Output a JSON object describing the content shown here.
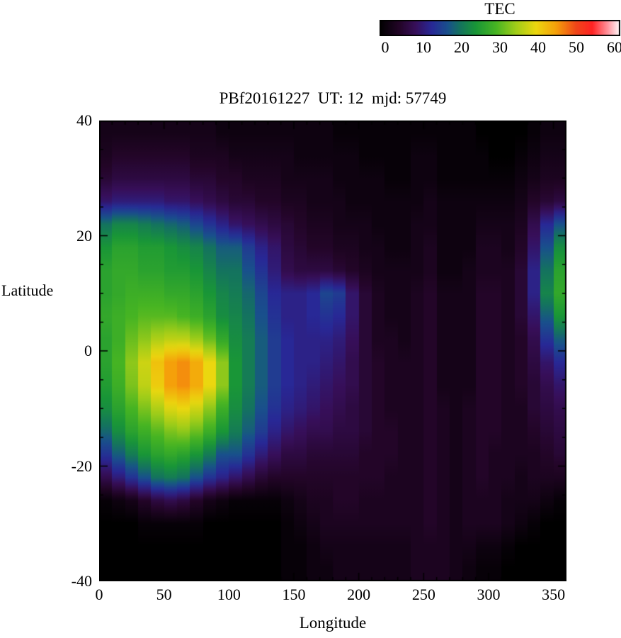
{
  "page": {
    "background": "#ffffff",
    "text_color": "#000000"
  },
  "chart_data": {
    "type": "heatmap",
    "title": "PBf20161227  UT: 12  mjd: 57749",
    "xlabel": "Longitude",
    "ylabel": "Latitude",
    "colorbar_title": "TEC",
    "xlim": [
      0,
      360
    ],
    "ylim": [
      -40,
      40
    ],
    "x_ticks": [
      0,
      50,
      100,
      150,
      200,
      250,
      300,
      350
    ],
    "y_ticks": [
      -40,
      -20,
      0,
      20,
      40
    ],
    "value_range": [
      0,
      60
    ],
    "colorbar_ticks": [
      0,
      10,
      20,
      30,
      40,
      50,
      60
    ],
    "grid_info": {
      "rows": 20,
      "cols": 36,
      "lat_centers": "from +38 (top row) to -38 (bottom row), step 4 deg",
      "lon_centers": "from 5 to 355, step 10 deg",
      "units": "TEC units, estimated from colorbar"
    },
    "colormap_stops": [
      {
        "v": 0,
        "c": "#000000"
      },
      {
        "v": 5,
        "c": "#230528"
      },
      {
        "v": 9,
        "c": "#370f5a"
      },
      {
        "v": 13,
        "c": "#282896"
      },
      {
        "v": 17,
        "c": "#19508c"
      },
      {
        "v": 20,
        "c": "#14735f"
      },
      {
        "v": 24,
        "c": "#199637"
      },
      {
        "v": 29,
        "c": "#46b423"
      },
      {
        "v": 34,
        "c": "#a0cd19"
      },
      {
        "v": 39,
        "c": "#ebd70f"
      },
      {
        "v": 44,
        "c": "#f5a00a"
      },
      {
        "v": 49,
        "c": "#f04619"
      },
      {
        "v": 53,
        "c": "#ff2323"
      },
      {
        "v": 57,
        "c": "#ff96a0"
      },
      {
        "v": 60,
        "c": "#ffffff"
      }
    ],
    "values": [
      [
        3,
        3,
        3,
        3,
        3,
        3,
        3,
        3,
        3,
        2,
        2,
        2,
        2,
        2,
        2,
        2,
        2,
        2,
        1,
        1,
        1,
        1,
        1,
        1,
        1,
        1,
        1,
        1,
        1,
        0,
        0,
        0,
        0,
        1,
        2,
        2
      ],
      [
        4,
        5,
        5,
        5,
        5,
        5,
        5,
        4,
        4,
        4,
        3,
        3,
        3,
        3,
        3,
        2,
        2,
        2,
        2,
        2,
        1,
        1,
        1,
        1,
        2,
        2,
        1,
        1,
        1,
        1,
        0,
        0,
        1,
        2,
        3,
        3
      ],
      [
        6,
        7,
        7,
        7,
        7,
        7,
        7,
        6,
        6,
        5,
        5,
        4,
        4,
        4,
        3,
        3,
        3,
        3,
        2,
        2,
        2,
        2,
        1,
        1,
        2,
        2,
        1,
        1,
        1,
        1,
        1,
        1,
        2,
        3,
        4,
        4
      ],
      [
        10,
        11,
        11,
        11,
        11,
        10,
        10,
        9,
        8,
        7,
        6,
        6,
        5,
        5,
        4,
        4,
        3,
        3,
        3,
        2,
        2,
        2,
        2,
        2,
        2,
        3,
        2,
        2,
        2,
        2,
        2,
        2,
        3,
        5,
        6,
        7
      ],
      [
        20,
        22,
        22,
        21,
        20,
        19,
        18,
        16,
        14,
        12,
        10,
        9,
        8,
        7,
        6,
        5,
        4,
        4,
        3,
        3,
        3,
        2,
        2,
        2,
        3,
        3,
        2,
        2,
        2,
        3,
        3,
        3,
        4,
        8,
        13,
        17
      ],
      [
        24,
        26,
        26,
        25,
        25,
        24,
        23,
        22,
        20,
        18,
        18,
        15,
        12,
        10,
        7,
        6,
        5,
        5,
        4,
        4,
        3,
        3,
        2,
        2,
        3,
        4,
        2,
        2,
        2,
        4,
        4,
        3,
        5,
        10,
        17,
        23
      ],
      [
        26,
        27,
        27,
        26,
        26,
        25,
        25,
        24,
        22,
        20,
        20,
        17,
        14,
        11,
        8,
        7,
        7,
        7,
        6,
        5,
        4,
        3,
        3,
        3,
        3,
        4,
        2,
        2,
        3,
        4,
        4,
        4,
        6,
        12,
        20,
        26
      ],
      [
        26,
        27,
        28,
        28,
        28,
        27,
        27,
        26,
        24,
        22,
        21,
        19,
        16,
        13,
        12,
        12,
        13,
        16,
        15,
        10,
        6,
        4,
        3,
        3,
        4,
        5,
        3,
        3,
        3,
        5,
        5,
        4,
        6,
        12,
        22,
        27
      ],
      [
        27,
        28,
        29,
        30,
        30,
        30,
        29,
        28,
        26,
        23,
        22,
        20,
        17,
        14,
        12,
        12,
        13,
        14,
        13,
        10,
        6,
        4,
        3,
        3,
        4,
        5,
        3,
        3,
        3,
        5,
        5,
        4,
        6,
        10,
        18,
        24
      ],
      [
        26,
        28,
        31,
        33,
        35,
        36,
        36,
        34,
        31,
        27,
        23,
        21,
        18,
        15,
        13,
        12,
        12,
        12,
        11,
        9,
        6,
        4,
        4,
        3,
        4,
        5,
        3,
        3,
        3,
        5,
        5,
        4,
        5,
        8,
        14,
        18
      ],
      [
        26,
        29,
        33,
        37,
        41,
        44,
        45,
        43,
        39,
        33,
        24,
        21,
        18,
        15,
        13,
        12,
        12,
        11,
        10,
        8,
        6,
        5,
        4,
        4,
        4,
        5,
        3,
        3,
        3,
        5,
        5,
        4,
        5,
        7,
        10,
        13
      ],
      [
        25,
        28,
        32,
        36,
        40,
        44,
        45,
        43,
        39,
        33,
        24,
        21,
        18,
        15,
        13,
        12,
        11,
        10,
        9,
        8,
        6,
        5,
        4,
        4,
        4,
        5,
        3,
        3,
        3,
        5,
        5,
        4,
        5,
        6,
        8,
        10
      ],
      [
        23,
        26,
        29,
        32,
        35,
        38,
        39,
        37,
        33,
        28,
        23,
        20,
        17,
        14,
        12,
        11,
        10,
        9,
        8,
        7,
        6,
        5,
        4,
        4,
        4,
        5,
        4,
        3,
        4,
        5,
        5,
        4,
        4,
        6,
        7,
        8
      ],
      [
        19,
        23,
        26,
        28,
        30,
        32,
        33,
        31,
        28,
        24,
        21,
        18,
        15,
        12,
        10,
        9,
        8,
        8,
        7,
        7,
        6,
        5,
        5,
        4,
        4,
        5,
        4,
        3,
        4,
        5,
        5,
        4,
        4,
        5,
        6,
        7
      ],
      [
        14,
        18,
        21,
        24,
        26,
        27,
        26,
        24,
        21,
        17,
        17,
        14,
        11,
        9,
        7,
        7,
        6,
        6,
        6,
        6,
        5,
        5,
        5,
        4,
        4,
        5,
        4,
        3,
        4,
        5,
        4,
        4,
        4,
        4,
        5,
        6
      ],
      [
        8,
        11,
        14,
        17,
        20,
        21,
        20,
        17,
        14,
        12,
        10,
        8,
        6,
        5,
        5,
        5,
        5,
        5,
        5,
        5,
        5,
        5,
        4,
        4,
        4,
        5,
        4,
        3,
        4,
        5,
        4,
        4,
        3,
        4,
        4,
        4
      ],
      [
        1,
        2,
        3,
        5,
        7,
        8,
        7,
        5,
        3,
        2,
        1,
        1,
        1,
        1,
        2,
        3,
        4,
        4,
        5,
        5,
        4,
        4,
        4,
        4,
        4,
        5,
        4,
        3,
        4,
        4,
        4,
        3,
        3,
        3,
        2,
        1
      ],
      [
        0,
        0,
        0,
        1,
        1,
        1,
        1,
        1,
        0,
        0,
        0,
        0,
        0,
        0,
        1,
        2,
        3,
        4,
        4,
        4,
        4,
        4,
        4,
        4,
        4,
        5,
        4,
        3,
        4,
        4,
        4,
        3,
        2,
        1,
        0,
        0
      ],
      [
        0,
        0,
        0,
        0,
        0,
        0,
        0,
        0,
        0,
        0,
        0,
        0,
        0,
        0,
        1,
        1,
        2,
        3,
        3,
        3,
        3,
        3,
        3,
        3,
        4,
        4,
        4,
        3,
        3,
        2,
        2,
        1,
        0,
        0,
        0,
        0
      ],
      [
        0,
        0,
        0,
        0,
        0,
        0,
        0,
        0,
        0,
        0,
        0,
        0,
        0,
        0,
        1,
        1,
        2,
        2,
        3,
        3,
        3,
        3,
        3,
        3,
        4,
        4,
        4,
        3,
        2,
        1,
        1,
        0,
        0,
        0,
        0,
        0
      ]
    ]
  }
}
